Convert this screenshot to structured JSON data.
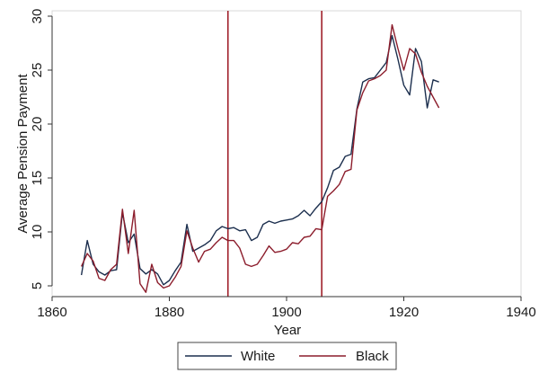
{
  "chart_data": {
    "type": "line",
    "xlabel": "Year",
    "ylabel": "Average Pension Payment",
    "xlim": [
      1860,
      1940
    ],
    "ylim": [
      4,
      30.5
    ],
    "x_ticks": [
      1860,
      1880,
      1900,
      1920,
      1940
    ],
    "y_ticks": [
      5,
      10,
      15,
      20,
      25,
      30
    ],
    "grid": false,
    "legend_position": "bottom",
    "reference_lines_x": [
      1890,
      1906
    ],
    "reference_line_color": "#a0202a",
    "series": [
      {
        "name": "White",
        "color": "#1c2f4e",
        "x": [
          1865,
          1866,
          1867,
          1868,
          1869,
          1870,
          1871,
          1872,
          1873,
          1874,
          1875,
          1876,
          1877,
          1878,
          1879,
          1880,
          1881,
          1882,
          1883,
          1884,
          1885,
          1886,
          1887,
          1888,
          1889,
          1890,
          1891,
          1892,
          1893,
          1894,
          1895,
          1896,
          1897,
          1898,
          1899,
          1900,
          1901,
          1902,
          1903,
          1904,
          1905,
          1906,
          1907,
          1908,
          1909,
          1910,
          1911,
          1912,
          1913,
          1914,
          1915,
          1916,
          1917,
          1918,
          1919,
          1920,
          1921,
          1922,
          1923,
          1924,
          1925,
          1926
        ],
        "values": [
          6.0,
          9.2,
          7.0,
          6.3,
          6.0,
          6.4,
          6.5,
          11.8,
          9.0,
          9.8,
          6.6,
          6.1,
          6.5,
          6.1,
          5.1,
          5.5,
          6.4,
          7.2,
          10.7,
          8.2,
          8.5,
          8.8,
          9.2,
          10.1,
          10.5,
          10.3,
          10.4,
          10.1,
          10.2,
          9.2,
          9.5,
          10.7,
          11.0,
          10.8,
          11.0,
          11.1,
          11.2,
          11.5,
          12.0,
          11.5,
          12.2,
          12.8,
          14.1,
          15.7,
          16.0,
          17.0,
          17.2,
          21.4,
          23.9,
          24.2,
          24.3,
          25.0,
          25.7,
          28.2,
          26.0,
          23.6,
          22.7,
          27.0,
          25.8,
          21.5,
          24.1,
          23.9
        ]
      },
      {
        "name": "Black",
        "color": "#8c1d2c",
        "x": [
          1865,
          1866,
          1867,
          1868,
          1869,
          1870,
          1871,
          1872,
          1873,
          1874,
          1875,
          1876,
          1877,
          1878,
          1879,
          1880,
          1881,
          1882,
          1883,
          1884,
          1885,
          1886,
          1887,
          1888,
          1889,
          1890,
          1891,
          1892,
          1893,
          1894,
          1895,
          1896,
          1897,
          1898,
          1899,
          1900,
          1901,
          1902,
          1903,
          1904,
          1905,
          1906,
          1907,
          1908,
          1909,
          1910,
          1911,
          1912,
          1913,
          1914,
          1915,
          1916,
          1917,
          1918,
          1919,
          1920,
          1921,
          1922,
          1923,
          1924,
          1925,
          1926
        ],
        "values": [
          6.8,
          8.0,
          7.3,
          5.7,
          5.5,
          6.5,
          7.0,
          12.1,
          8.0,
          12.0,
          5.2,
          4.4,
          7.0,
          5.3,
          4.8,
          5.0,
          5.8,
          6.8,
          10.1,
          8.5,
          7.2,
          8.2,
          8.4,
          9.0,
          9.5,
          9.2,
          9.2,
          8.5,
          7.0,
          6.8,
          7.0,
          7.8,
          8.7,
          8.1,
          8.2,
          8.4,
          9.0,
          8.9,
          9.5,
          9.6,
          10.3,
          10.2,
          13.3,
          13.8,
          14.4,
          15.6,
          15.8,
          21.3,
          22.9,
          24.0,
          24.2,
          24.5,
          25.0,
          29.2,
          27.0,
          25.0,
          27.0,
          26.5,
          24.8,
          23.5,
          22.5,
          21.5
        ]
      }
    ]
  }
}
